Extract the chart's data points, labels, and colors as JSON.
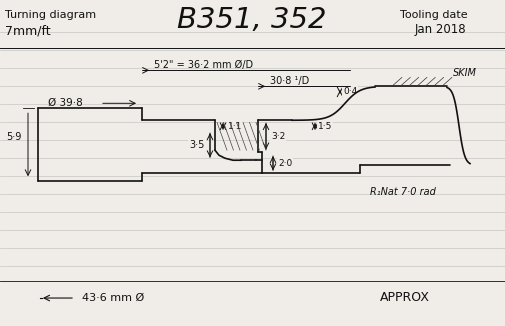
{
  "title_left": "Turning diagram",
  "subtitle_left": "7mm/ft",
  "title_center": "B351, 352",
  "title_right": "Tooling date",
  "subtitle_right": "Jan 2018",
  "bg_color": "#f0ede8",
  "line_color": "#111111",
  "ruled_line_color": "#bbbbbb",
  "annotations": {
    "phi_398": "Ø 39·8",
    "dim_52": "5'2\" = 36·2 mm Ø/D",
    "dim_308": "30·8 ¹/D",
    "dim_04": "0·4",
    "dim_15": "1·5",
    "dim_11": "1·1",
    "dim_35": "3·5",
    "dim_32": "3·2",
    "dim_20": "2·0",
    "dim_59": "5·9",
    "skim": "SKIM",
    "radius": "R₁Nat 7·0 rad",
    "bottom_dim": "43·6 mm Ø",
    "approx": "APPROX"
  }
}
